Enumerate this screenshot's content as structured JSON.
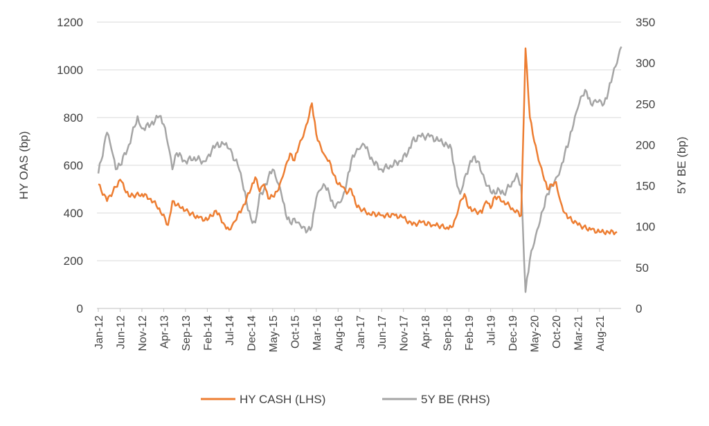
{
  "chart_data": {
    "type": "line",
    "title": "",
    "xlabel": "",
    "ylabel": "HY OAS (bp)",
    "ylabel_right": "5Y BE (bp)",
    "ylim": [
      0,
      1200
    ],
    "ylim_right": [
      0,
      350
    ],
    "yticks": [
      "0",
      "200",
      "400",
      "600",
      "800",
      "1000",
      "1200"
    ],
    "yticks_right": [
      "0",
      "50",
      "100",
      "150",
      "200",
      "250",
      "300",
      "350"
    ],
    "xticks": [
      "Jan-12",
      "Jun-12",
      "Nov-12",
      "Apr-13",
      "Sep-13",
      "Feb-14",
      "Jul-14",
      "Dec-14",
      "May-15",
      "Oct-15",
      "Mar-16",
      "Aug-16",
      "Jan-17",
      "Jun-17",
      "Nov-17",
      "Apr-18",
      "Sep-18",
      "Feb-19",
      "Jul-19",
      "Dec-19",
      "May-20",
      "Oct-20",
      "Mar-21",
      "Aug-21"
    ],
    "grid": true,
    "legend_position": "bottom",
    "series": [
      {
        "name": "HY CASH (LHS)",
        "axis": "left",
        "color": "#ED7D31",
        "points": [
          [
            "2012-01",
            520
          ],
          [
            "2012-03",
            450
          ],
          [
            "2012-06",
            540
          ],
          [
            "2012-08",
            470
          ],
          [
            "2012-11",
            480
          ],
          [
            "2013-01",
            460
          ],
          [
            "2013-03",
            420
          ],
          [
            "2013-05",
            350
          ],
          [
            "2013-06",
            450
          ],
          [
            "2013-08",
            420
          ],
          [
            "2013-09",
            410
          ],
          [
            "2013-12",
            380
          ],
          [
            "2014-02",
            370
          ],
          [
            "2014-04",
            410
          ],
          [
            "2014-06",
            350
          ],
          [
            "2014-07",
            330
          ],
          [
            "2014-08",
            360
          ],
          [
            "2014-10",
            420
          ],
          [
            "2014-12",
            500
          ],
          [
            "2015-01",
            550
          ],
          [
            "2015-02",
            490
          ],
          [
            "2015-03",
            520
          ],
          [
            "2015-04",
            460
          ],
          [
            "2015-05",
            470
          ],
          [
            "2015-06",
            490
          ],
          [
            "2015-07",
            540
          ],
          [
            "2015-08",
            600
          ],
          [
            "2015-09",
            650
          ],
          [
            "2015-10",
            620
          ],
          [
            "2015-11",
            680
          ],
          [
            "2015-12",
            720
          ],
          [
            "2016-01",
            780
          ],
          [
            "2016-02",
            860
          ],
          [
            "2016-03",
            730
          ],
          [
            "2016-04",
            680
          ],
          [
            "2016-05",
            640
          ],
          [
            "2016-06",
            620
          ],
          [
            "2016-07",
            560
          ],
          [
            "2016-08",
            520
          ],
          [
            "2016-09",
            510
          ],
          [
            "2016-10",
            480
          ],
          [
            "2016-11",
            500
          ],
          [
            "2016-12",
            440
          ],
          [
            "2017-01",
            420
          ],
          [
            "2017-03",
            400
          ],
          [
            "2017-06",
            390
          ],
          [
            "2017-09",
            390
          ],
          [
            "2017-11",
            380
          ],
          [
            "2018-01",
            350
          ],
          [
            "2018-03",
            360
          ],
          [
            "2018-06",
            350
          ],
          [
            "2018-09",
            340
          ],
          [
            "2018-10",
            340
          ],
          [
            "2018-11",
            380
          ],
          [
            "2018-12",
            450
          ],
          [
            "2019-01",
            480
          ],
          [
            "2019-02",
            420
          ],
          [
            "2019-03",
            410
          ],
          [
            "2019-05",
            400
          ],
          [
            "2019-06",
            450
          ],
          [
            "2019-07",
            420
          ],
          [
            "2019-08",
            470
          ],
          [
            "2019-10",
            450
          ],
          [
            "2019-12",
            420
          ],
          [
            "2020-02",
            390
          ],
          [
            "2020-03",
            1090
          ],
          [
            "2020-04",
            800
          ],
          [
            "2020-05",
            700
          ],
          [
            "2020-06",
            620
          ],
          [
            "2020-07",
            560
          ],
          [
            "2020-08",
            500
          ],
          [
            "2020-09",
            520
          ],
          [
            "2020-10",
            530
          ],
          [
            "2020-11",
            450
          ],
          [
            "2020-12",
            400
          ],
          [
            "2021-01",
            380
          ],
          [
            "2021-03",
            350
          ],
          [
            "2021-06",
            330
          ],
          [
            "2021-08",
            320
          ],
          [
            "2021-10",
            320
          ],
          [
            "2021-12",
            320
          ]
        ]
      },
      {
        "name": "5Y BE (RHS)",
        "axis": "right",
        "color": "#A5A5A5",
        "points": [
          [
            "2012-01",
            165
          ],
          [
            "2012-03",
            215
          ],
          [
            "2012-04",
            195
          ],
          [
            "2012-05",
            170
          ],
          [
            "2012-06",
            175
          ],
          [
            "2012-08",
            200
          ],
          [
            "2012-10",
            235
          ],
          [
            "2012-11",
            220
          ],
          [
            "2013-01",
            225
          ],
          [
            "2013-03",
            235
          ],
          [
            "2013-04",
            225
          ],
          [
            "2013-05",
            200
          ],
          [
            "2013-06",
            170
          ],
          [
            "2013-07",
            190
          ],
          [
            "2013-09",
            180
          ],
          [
            "2013-11",
            185
          ],
          [
            "2014-01",
            180
          ],
          [
            "2014-02",
            185
          ],
          [
            "2014-04",
            200
          ],
          [
            "2014-06",
            200
          ],
          [
            "2014-07",
            195
          ],
          [
            "2014-09",
            175
          ],
          [
            "2014-10",
            155
          ],
          [
            "2014-11",
            130
          ],
          [
            "2014-12",
            110
          ],
          [
            "2015-01",
            105
          ],
          [
            "2015-02",
            140
          ],
          [
            "2015-03",
            145
          ],
          [
            "2015-04",
            160
          ],
          [
            "2015-05",
            170
          ],
          [
            "2015-06",
            155
          ],
          [
            "2015-07",
            140
          ],
          [
            "2015-08",
            115
          ],
          [
            "2015-09",
            105
          ],
          [
            "2015-10",
            110
          ],
          [
            "2015-11",
            105
          ],
          [
            "2015-12",
            100
          ],
          [
            "2016-01",
            95
          ],
          [
            "2016-02",
            100
          ],
          [
            "2016-03",
            135
          ],
          [
            "2016-04",
            145
          ],
          [
            "2016-05",
            150
          ],
          [
            "2016-06",
            140
          ],
          [
            "2016-07",
            125
          ],
          [
            "2016-08",
            130
          ],
          [
            "2016-09",
            135
          ],
          [
            "2016-10",
            155
          ],
          [
            "2016-11",
            180
          ],
          [
            "2016-12",
            190
          ],
          [
            "2017-01",
            195
          ],
          [
            "2017-02",
            200
          ],
          [
            "2017-04",
            180
          ],
          [
            "2017-06",
            170
          ],
          [
            "2017-08",
            175
          ],
          [
            "2017-10",
            180
          ],
          [
            "2017-12",
            190
          ],
          [
            "2018-01",
            205
          ],
          [
            "2018-03",
            210
          ],
          [
            "2018-05",
            210
          ],
          [
            "2018-07",
            205
          ],
          [
            "2018-09",
            200
          ],
          [
            "2018-10",
            195
          ],
          [
            "2018-11",
            160
          ],
          [
            "2018-12",
            140
          ],
          [
            "2019-01",
            160
          ],
          [
            "2019-03",
            185
          ],
          [
            "2019-04",
            180
          ],
          [
            "2019-05",
            165
          ],
          [
            "2019-06",
            150
          ],
          [
            "2019-08",
            140
          ],
          [
            "2019-09",
            145
          ],
          [
            "2019-10",
            140
          ],
          [
            "2019-12",
            155
          ],
          [
            "2020-01",
            165
          ],
          [
            "2020-02",
            150
          ],
          [
            "2020-03",
            20
          ],
          [
            "2020-04",
            60
          ],
          [
            "2020-05",
            80
          ],
          [
            "2020-06",
            100
          ],
          [
            "2020-07",
            120
          ],
          [
            "2020-08",
            140
          ],
          [
            "2020-09",
            150
          ],
          [
            "2020-10",
            160
          ],
          [
            "2020-11",
            170
          ],
          [
            "2020-12",
            190
          ],
          [
            "2021-01",
            205
          ],
          [
            "2021-02",
            225
          ],
          [
            "2021-03",
            245
          ],
          [
            "2021-04",
            260
          ],
          [
            "2021-05",
            265
          ],
          [
            "2021-06",
            250
          ],
          [
            "2021-07",
            255
          ],
          [
            "2021-08",
            255
          ],
          [
            "2021-09",
            250
          ],
          [
            "2021-10",
            265
          ],
          [
            "2021-11",
            285
          ],
          [
            "2021-12",
            300
          ],
          [
            "2022-01",
            320
          ]
        ]
      }
    ]
  }
}
